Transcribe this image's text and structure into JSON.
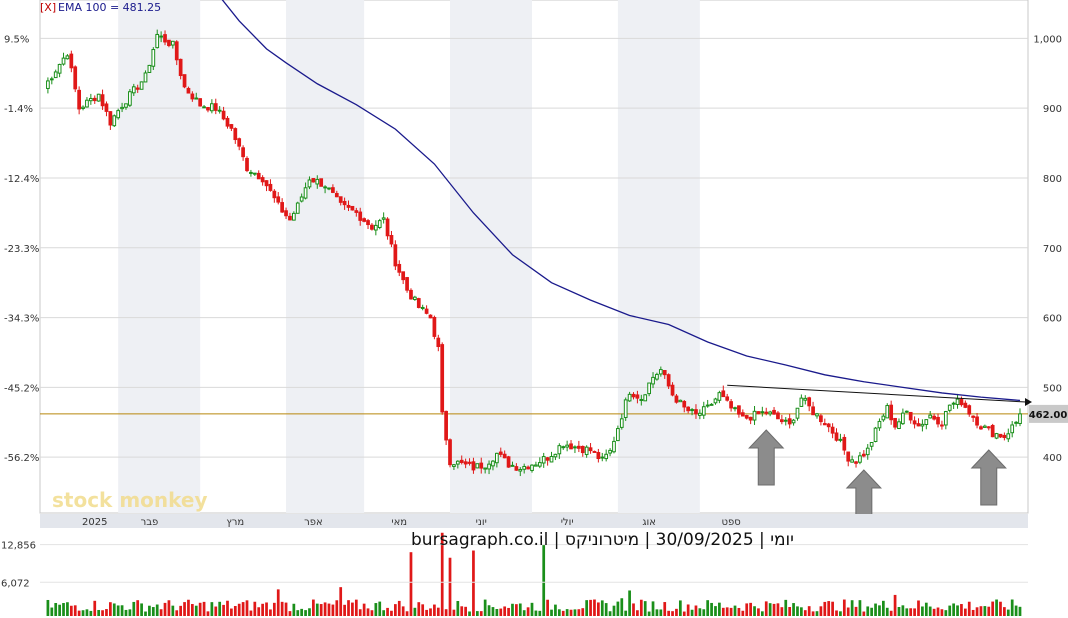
{
  "ema_label_prefix": "[X]",
  "ema_label": "EMA 100 = 481.25",
  "watermark": "stock monkey",
  "caption": "יומי | 30/09/2025 | מיטרוניקס | bursagraph.co.il",
  "last_price_label": "462.00",
  "colors": {
    "up": "#1a8f1a",
    "down": "#e01818",
    "ema": "#1a1a8c",
    "price_line": "#b8860b",
    "grid": "#d9d9d9",
    "band": "#eef0f4"
  },
  "chart_data": {
    "type": "candlestick",
    "title": "",
    "right_axis": {
      "ticks": [
        400,
        500,
        600,
        700,
        800,
        900,
        1000
      ],
      "labels": [
        "400",
        "500",
        "600",
        "700",
        "800",
        "900",
        "1,000"
      ],
      "ylim": [
        320,
        1055
      ]
    },
    "left_axis": {
      "labels": [
        "9.5%",
        "-1.4%",
        "-12.4%",
        "-23.3%",
        "-34.3%",
        "-45.2%",
        "-56.2%"
      ],
      "at_price": [
        1000,
        900,
        800,
        700,
        600,
        500,
        400
      ]
    },
    "months": [
      "2025",
      "פבר",
      "מרץ",
      "אפר",
      "מאי",
      "יוני",
      "יולי",
      "אוג",
      "ספט"
    ],
    "ema_period": 100,
    "ema_last": 481.25,
    "last_close": 462.0,
    "close_path": [
      {
        "i": 0,
        "v": 930
      },
      {
        "i": 6,
        "v": 980
      },
      {
        "i": 9,
        "v": 900
      },
      {
        "i": 14,
        "v": 920
      },
      {
        "i": 17,
        "v": 880
      },
      {
        "i": 20,
        "v": 905
      },
      {
        "i": 26,
        "v": 945
      },
      {
        "i": 29,
        "v": 1005
      },
      {
        "i": 33,
        "v": 990
      },
      {
        "i": 36,
        "v": 930
      },
      {
        "i": 40,
        "v": 905
      },
      {
        "i": 44,
        "v": 900
      },
      {
        "i": 48,
        "v": 870
      },
      {
        "i": 52,
        "v": 815
      },
      {
        "i": 56,
        "v": 800
      },
      {
        "i": 60,
        "v": 760
      },
      {
        "i": 63,
        "v": 740
      },
      {
        "i": 65,
        "v": 760
      },
      {
        "i": 68,
        "v": 800
      },
      {
        "i": 72,
        "v": 790
      },
      {
        "i": 76,
        "v": 760
      },
      {
        "i": 80,
        "v": 750
      },
      {
        "i": 84,
        "v": 730
      },
      {
        "i": 87,
        "v": 740
      },
      {
        "i": 90,
        "v": 680
      },
      {
        "i": 93,
        "v": 640
      },
      {
        "i": 96,
        "v": 615
      },
      {
        "i": 99,
        "v": 600
      },
      {
        "i": 101,
        "v": 555
      },
      {
        "i": 102,
        "v": 460
      },
      {
        "i": 104,
        "v": 395
      },
      {
        "i": 107,
        "v": 390
      },
      {
        "i": 110,
        "v": 385
      },
      {
        "i": 113,
        "v": 390
      },
      {
        "i": 116,
        "v": 405
      },
      {
        "i": 119,
        "v": 390
      },
      {
        "i": 122,
        "v": 385
      },
      {
        "i": 126,
        "v": 392
      },
      {
        "i": 129,
        "v": 400
      },
      {
        "i": 133,
        "v": 420
      },
      {
        "i": 136,
        "v": 415
      },
      {
        "i": 140,
        "v": 410
      },
      {
        "i": 143,
        "v": 395
      },
      {
        "i": 145,
        "v": 408
      },
      {
        "i": 148,
        "v": 460
      },
      {
        "i": 150,
        "v": 495
      },
      {
        "i": 153,
        "v": 485
      },
      {
        "i": 156,
        "v": 515
      },
      {
        "i": 158,
        "v": 525
      },
      {
        "i": 161,
        "v": 490
      },
      {
        "i": 164,
        "v": 470
      },
      {
        "i": 167,
        "v": 460
      },
      {
        "i": 170,
        "v": 470
      },
      {
        "i": 173,
        "v": 490
      },
      {
        "i": 176,
        "v": 470
      },
      {
        "i": 179,
        "v": 455
      },
      {
        "i": 182,
        "v": 460
      },
      {
        "i": 185,
        "v": 465
      },
      {
        "i": 188,
        "v": 455
      },
      {
        "i": 191,
        "v": 445
      },
      {
        "i": 194,
        "v": 485
      },
      {
        "i": 197,
        "v": 465
      },
      {
        "i": 200,
        "v": 450
      },
      {
        "i": 203,
        "v": 430
      },
      {
        "i": 206,
        "v": 400
      },
      {
        "i": 208,
        "v": 395
      },
      {
        "i": 211,
        "v": 410
      },
      {
        "i": 214,
        "v": 450
      },
      {
        "i": 216,
        "v": 470
      },
      {
        "i": 218,
        "v": 445
      },
      {
        "i": 221,
        "v": 465
      },
      {
        "i": 224,
        "v": 445
      },
      {
        "i": 227,
        "v": 460
      },
      {
        "i": 230,
        "v": 450
      },
      {
        "i": 232,
        "v": 475
      },
      {
        "i": 235,
        "v": 480
      },
      {
        "i": 237,
        "v": 465
      },
      {
        "i": 240,
        "v": 445
      },
      {
        "i": 243,
        "v": 435
      },
      {
        "i": 246,
        "v": 430
      },
      {
        "i": 249,
        "v": 450
      },
      {
        "i": 250,
        "v": 462
      }
    ],
    "ema_path": [
      {
        "i": 45,
        "v": 1060
      },
      {
        "i": 50,
        "v": 1025
      },
      {
        "i": 57,
        "v": 985
      },
      {
        "i": 62,
        "v": 965
      },
      {
        "i": 70,
        "v": 935
      },
      {
        "i": 80,
        "v": 905
      },
      {
        "i": 90,
        "v": 870
      },
      {
        "i": 100,
        "v": 820
      },
      {
        "i": 110,
        "v": 750
      },
      {
        "i": 120,
        "v": 690
      },
      {
        "i": 130,
        "v": 650
      },
      {
        "i": 140,
        "v": 625
      },
      {
        "i": 150,
        "v": 603
      },
      {
        "i": 160,
        "v": 590
      },
      {
        "i": 170,
        "v": 565
      },
      {
        "i": 180,
        "v": 545
      },
      {
        "i": 190,
        "v": 532
      },
      {
        "i": 200,
        "v": 518
      },
      {
        "i": 210,
        "v": 508
      },
      {
        "i": 220,
        "v": 500
      },
      {
        "i": 230,
        "v": 492
      },
      {
        "i": 240,
        "v": 486
      },
      {
        "i": 250,
        "v": 481.25
      }
    ],
    "trendline": {
      "from": {
        "i": 175,
        "v": 503
      },
      "to": {
        "i": 250,
        "v": 479
      }
    },
    "volume_axis": {
      "labels": [
        "12,856",
        "6,072"
      ],
      "values": [
        12856,
        6072
      ]
    }
  }
}
